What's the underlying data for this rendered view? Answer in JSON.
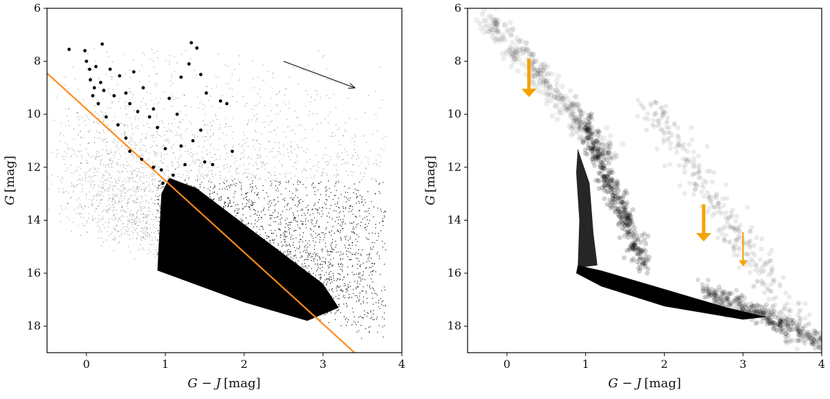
{
  "chart_data": [
    {
      "type": "scatter",
      "xlabel_main": "G − J",
      "xlabel_unit": "[mag]",
      "ylabel_main": "G",
      "ylabel_unit": "[mag]",
      "xlim": [
        -0.5,
        4
      ],
      "ylim": [
        19,
        6
      ],
      "y_inverted": true,
      "xticks": [
        0,
        1,
        2,
        3,
        4
      ],
      "yticks": [
        6,
        8,
        10,
        12,
        14,
        16,
        18
      ],
      "grid": false,
      "colors": {
        "points": "#000000",
        "cut_line": "#ff8c1a",
        "arrow": "#000000"
      },
      "series": [
        {
          "kind": "background-density",
          "description_region": "dense cloud of stars"
        },
        {
          "kind": "highlighted-points",
          "values": [
            [
              -0.22,
              7.55
            ],
            [
              -0.02,
              7.6
            ],
            [
              0.2,
              7.35
            ],
            [
              1.33,
              7.3
            ],
            [
              1.4,
              7.5
            ],
            [
              0.0,
              8.0
            ],
            [
              0.04,
              8.3
            ],
            [
              0.05,
              8.7
            ],
            [
              0.1,
              9.0
            ],
            [
              0.12,
              8.2
            ],
            [
              0.18,
              8.8
            ],
            [
              0.22,
              9.1
            ],
            [
              0.3,
              8.3
            ],
            [
              0.35,
              9.3
            ],
            [
              0.42,
              8.55
            ],
            [
              0.5,
              9.2
            ],
            [
              0.55,
              9.6
            ],
            [
              0.6,
              8.4
            ],
            [
              0.65,
              9.9
            ],
            [
              0.72,
              9.0
            ],
            [
              0.8,
              10.1
            ],
            [
              0.85,
              9.8
            ],
            [
              0.9,
              10.5
            ],
            [
              1.05,
              9.4
            ],
            [
              1.15,
              10.0
            ],
            [
              1.2,
              8.6
            ],
            [
              1.3,
              8.1
            ],
            [
              1.45,
              8.5
            ],
            [
              1.52,
              9.2
            ],
            [
              1.7,
              9.5
            ],
            [
              1.78,
              9.6
            ],
            [
              1.45,
              10.6
            ],
            [
              1.35,
              11.0
            ],
            [
              1.2,
              11.2
            ],
            [
              1.0,
              11.3
            ],
            [
              0.95,
              12.1
            ],
            [
              0.85,
              12.0
            ],
            [
              0.7,
              11.7
            ],
            [
              0.55,
              11.4
            ],
            [
              0.5,
              10.9
            ],
            [
              0.4,
              10.4
            ],
            [
              0.25,
              10.1
            ],
            [
              0.15,
              9.6
            ],
            [
              0.08,
              9.3
            ],
            [
              1.5,
              11.8
            ],
            [
              1.6,
              11.9
            ],
            [
              1.85,
              11.4
            ],
            [
              1.25,
              11.9
            ],
            [
              1.1,
              12.3
            ],
            [
              0.97,
              12.6
            ]
          ]
        },
        {
          "kind": "line",
          "x": [
            -0.5,
            3.4
          ],
          "y": [
            8.45,
            19.0
          ]
        },
        {
          "kind": "arrow",
          "x": [
            2.5,
            3.4
          ],
          "y": [
            8.0,
            9.0
          ]
        }
      ]
    },
    {
      "type": "scatter",
      "xlabel_main": "G − J",
      "xlabel_unit": "[mag]",
      "ylabel_main": "G",
      "ylabel_unit": "[mag]",
      "xlim": [
        -0.5,
        4
      ],
      "ylim": [
        19,
        6
      ],
      "y_inverted": true,
      "xticks": [
        0,
        1,
        2,
        3,
        4
      ],
      "yticks": [
        6,
        8,
        10,
        12,
        14,
        16,
        18
      ],
      "grid": false,
      "colors": {
        "points": "#000000",
        "arrows": "#f5a300"
      },
      "series": [
        {
          "kind": "density",
          "description_region": "main sequence and giant branch"
        },
        {
          "kind": "arrows",
          "values": [
            {
              "x": 0.28,
              "y_start": 7.9,
              "y_end": 9.35,
              "weight": "thick"
            },
            {
              "x": 2.5,
              "y_start": 13.4,
              "y_end": 14.8,
              "weight": "thick"
            },
            {
              "x": 3.0,
              "y_start": 14.45,
              "y_end": 15.75,
              "weight": "thin"
            }
          ]
        }
      ]
    }
  ]
}
